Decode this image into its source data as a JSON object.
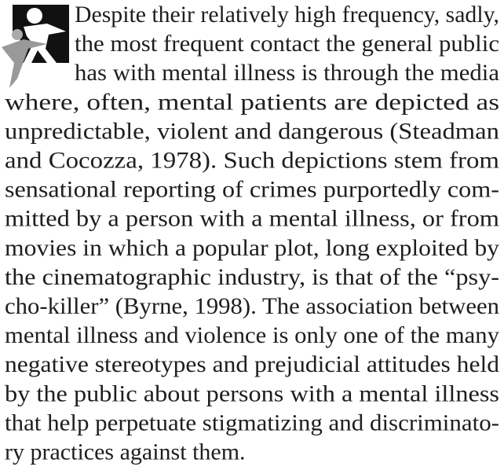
{
  "paragraph": {
    "lines": [
      "Despite their relatively high frequency, sadly,",
      "the most frequent contact the general public",
      "has with mental illness is through the media",
      "where, often, mental patients are depicted as",
      "unpredictable, violent and dangerous (Steadman",
      "and Cocozza, 1978). Such depictions stem from",
      "sensational reporting of crimes purportedly com-",
      "mitted by a person with a mental illness, or from",
      "movies in which a popular plot, long exploited by",
      "the cinematographic industry, is that of the “psy-",
      "cho-killer” (Byrne, 1998). The association between",
      "mental illness and violence is only one of the many",
      "negative stereotypes and prejudicial attitudes held",
      "by the public about persons with a mental illness",
      "that help perpetuate stigmatizing and discriminato-",
      "ry practices against them."
    ]
  }
}
